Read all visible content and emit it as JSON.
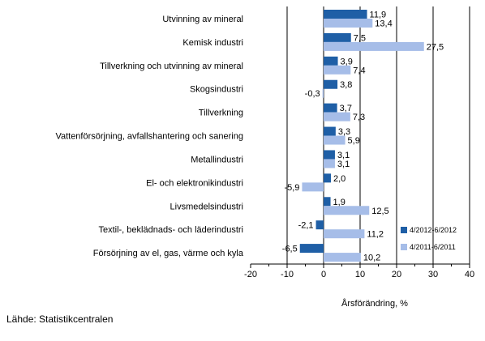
{
  "chart_data": {
    "type": "bar",
    "orientation": "horizontal",
    "categories": [
      "Utvinning av mineral",
      "Kemisk industri",
      "Tillverkning och utvinning av mineral",
      "Skogsindustri",
      "Tillverkning",
      "Vattenförsörjning, avfallshantering och sanering",
      "Metallindustri",
      "El- och elektronikindustri",
      "Livsmedelsindustri",
      "Textil-, beklädnads- och läderindustri",
      "Försörjning av el, gas, värme och kyla"
    ],
    "series": [
      {
        "name": "4/2012-6/2012",
        "color": "#1f5fa6",
        "values": [
          11.9,
          7.5,
          3.9,
          3.8,
          3.7,
          3.3,
          3.1,
          2.0,
          1.9,
          -2.1,
          -6.5
        ],
        "labels": [
          "11,9",
          "7,5",
          "3,9",
          "3,8",
          "3,7",
          "3,3",
          "3,1",
          "2,0",
          "1,9",
          "-2,1",
          "-6,5"
        ]
      },
      {
        "name": "4/2011-6/2011",
        "color": "#a6bde8",
        "values": [
          13.4,
          27.5,
          7.4,
          -0.3,
          7.3,
          5.9,
          3.1,
          -5.9,
          12.5,
          11.2,
          10.2
        ],
        "labels": [
          "13,4",
          "27,5",
          "7,4",
          "-0,3",
          "7,3",
          "5,9",
          "3,1",
          "-5,9",
          "12,5",
          "11,2",
          "10,2"
        ]
      }
    ],
    "xlim": [
      -20,
      40
    ],
    "xticks": [
      -20,
      -10,
      0,
      10,
      20,
      30,
      40
    ],
    "xlabel": "Årsförändring, %",
    "grid": "vertical",
    "legend": "bottom-right"
  },
  "source_text": "Lähde: Statistikcentralen"
}
